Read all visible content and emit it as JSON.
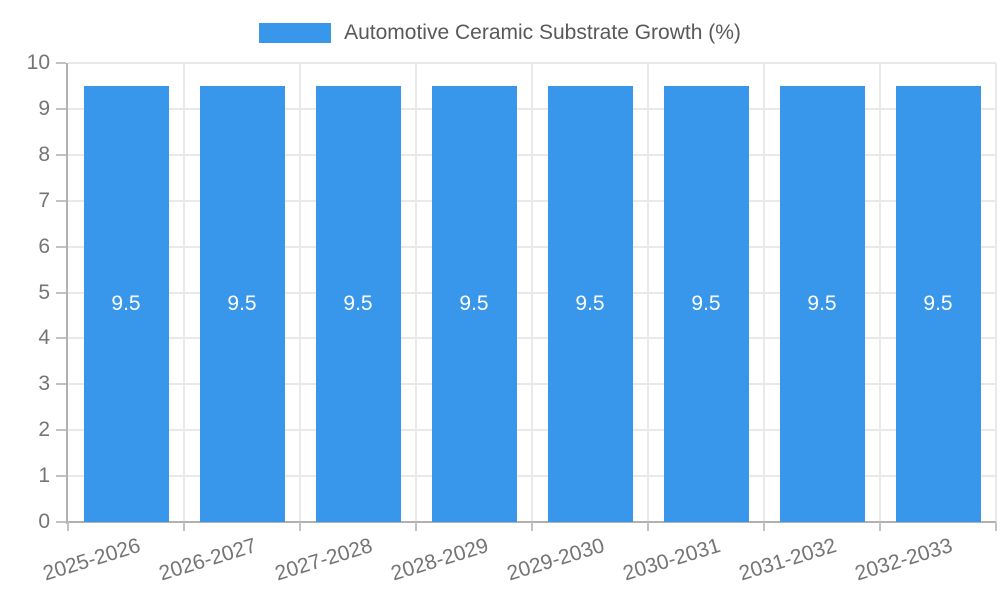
{
  "chart_data": {
    "type": "bar",
    "title": "Automotive Ceramic Substrate Growth (%)",
    "legend_position": "top",
    "categories": [
      "2025-2026",
      "2026-2027",
      "2027-2028",
      "2028-2029",
      "2029-2030",
      "2030-2031",
      "2031-2032",
      "2032-2033"
    ],
    "series": [
      {
        "name": "Automotive Ceramic Substrate Growth (%)",
        "values": [
          9.5,
          9.5,
          9.5,
          9.5,
          9.5,
          9.5,
          9.5,
          9.5
        ]
      }
    ],
    "bar_labels": [
      "9.5",
      "9.5",
      "9.5",
      "9.5",
      "9.5",
      "9.5",
      "9.5",
      "9.5"
    ],
    "xlabel": "",
    "ylabel": "",
    "ylim": [
      0,
      10
    ],
    "yticks": [
      0,
      1,
      2,
      3,
      4,
      5,
      6,
      7,
      8,
      9,
      10
    ],
    "grid": true,
    "x_label_rotation_deg": -17,
    "colors": {
      "bar": "#3897EB",
      "grid": "#E9E9E9",
      "axis": "#B1B1B1",
      "tick": "#C2C2C2",
      "axis_label": "#757575",
      "title": "#58595B",
      "bar_label": "#FFFFFF",
      "background": "#FFFFFF"
    }
  }
}
